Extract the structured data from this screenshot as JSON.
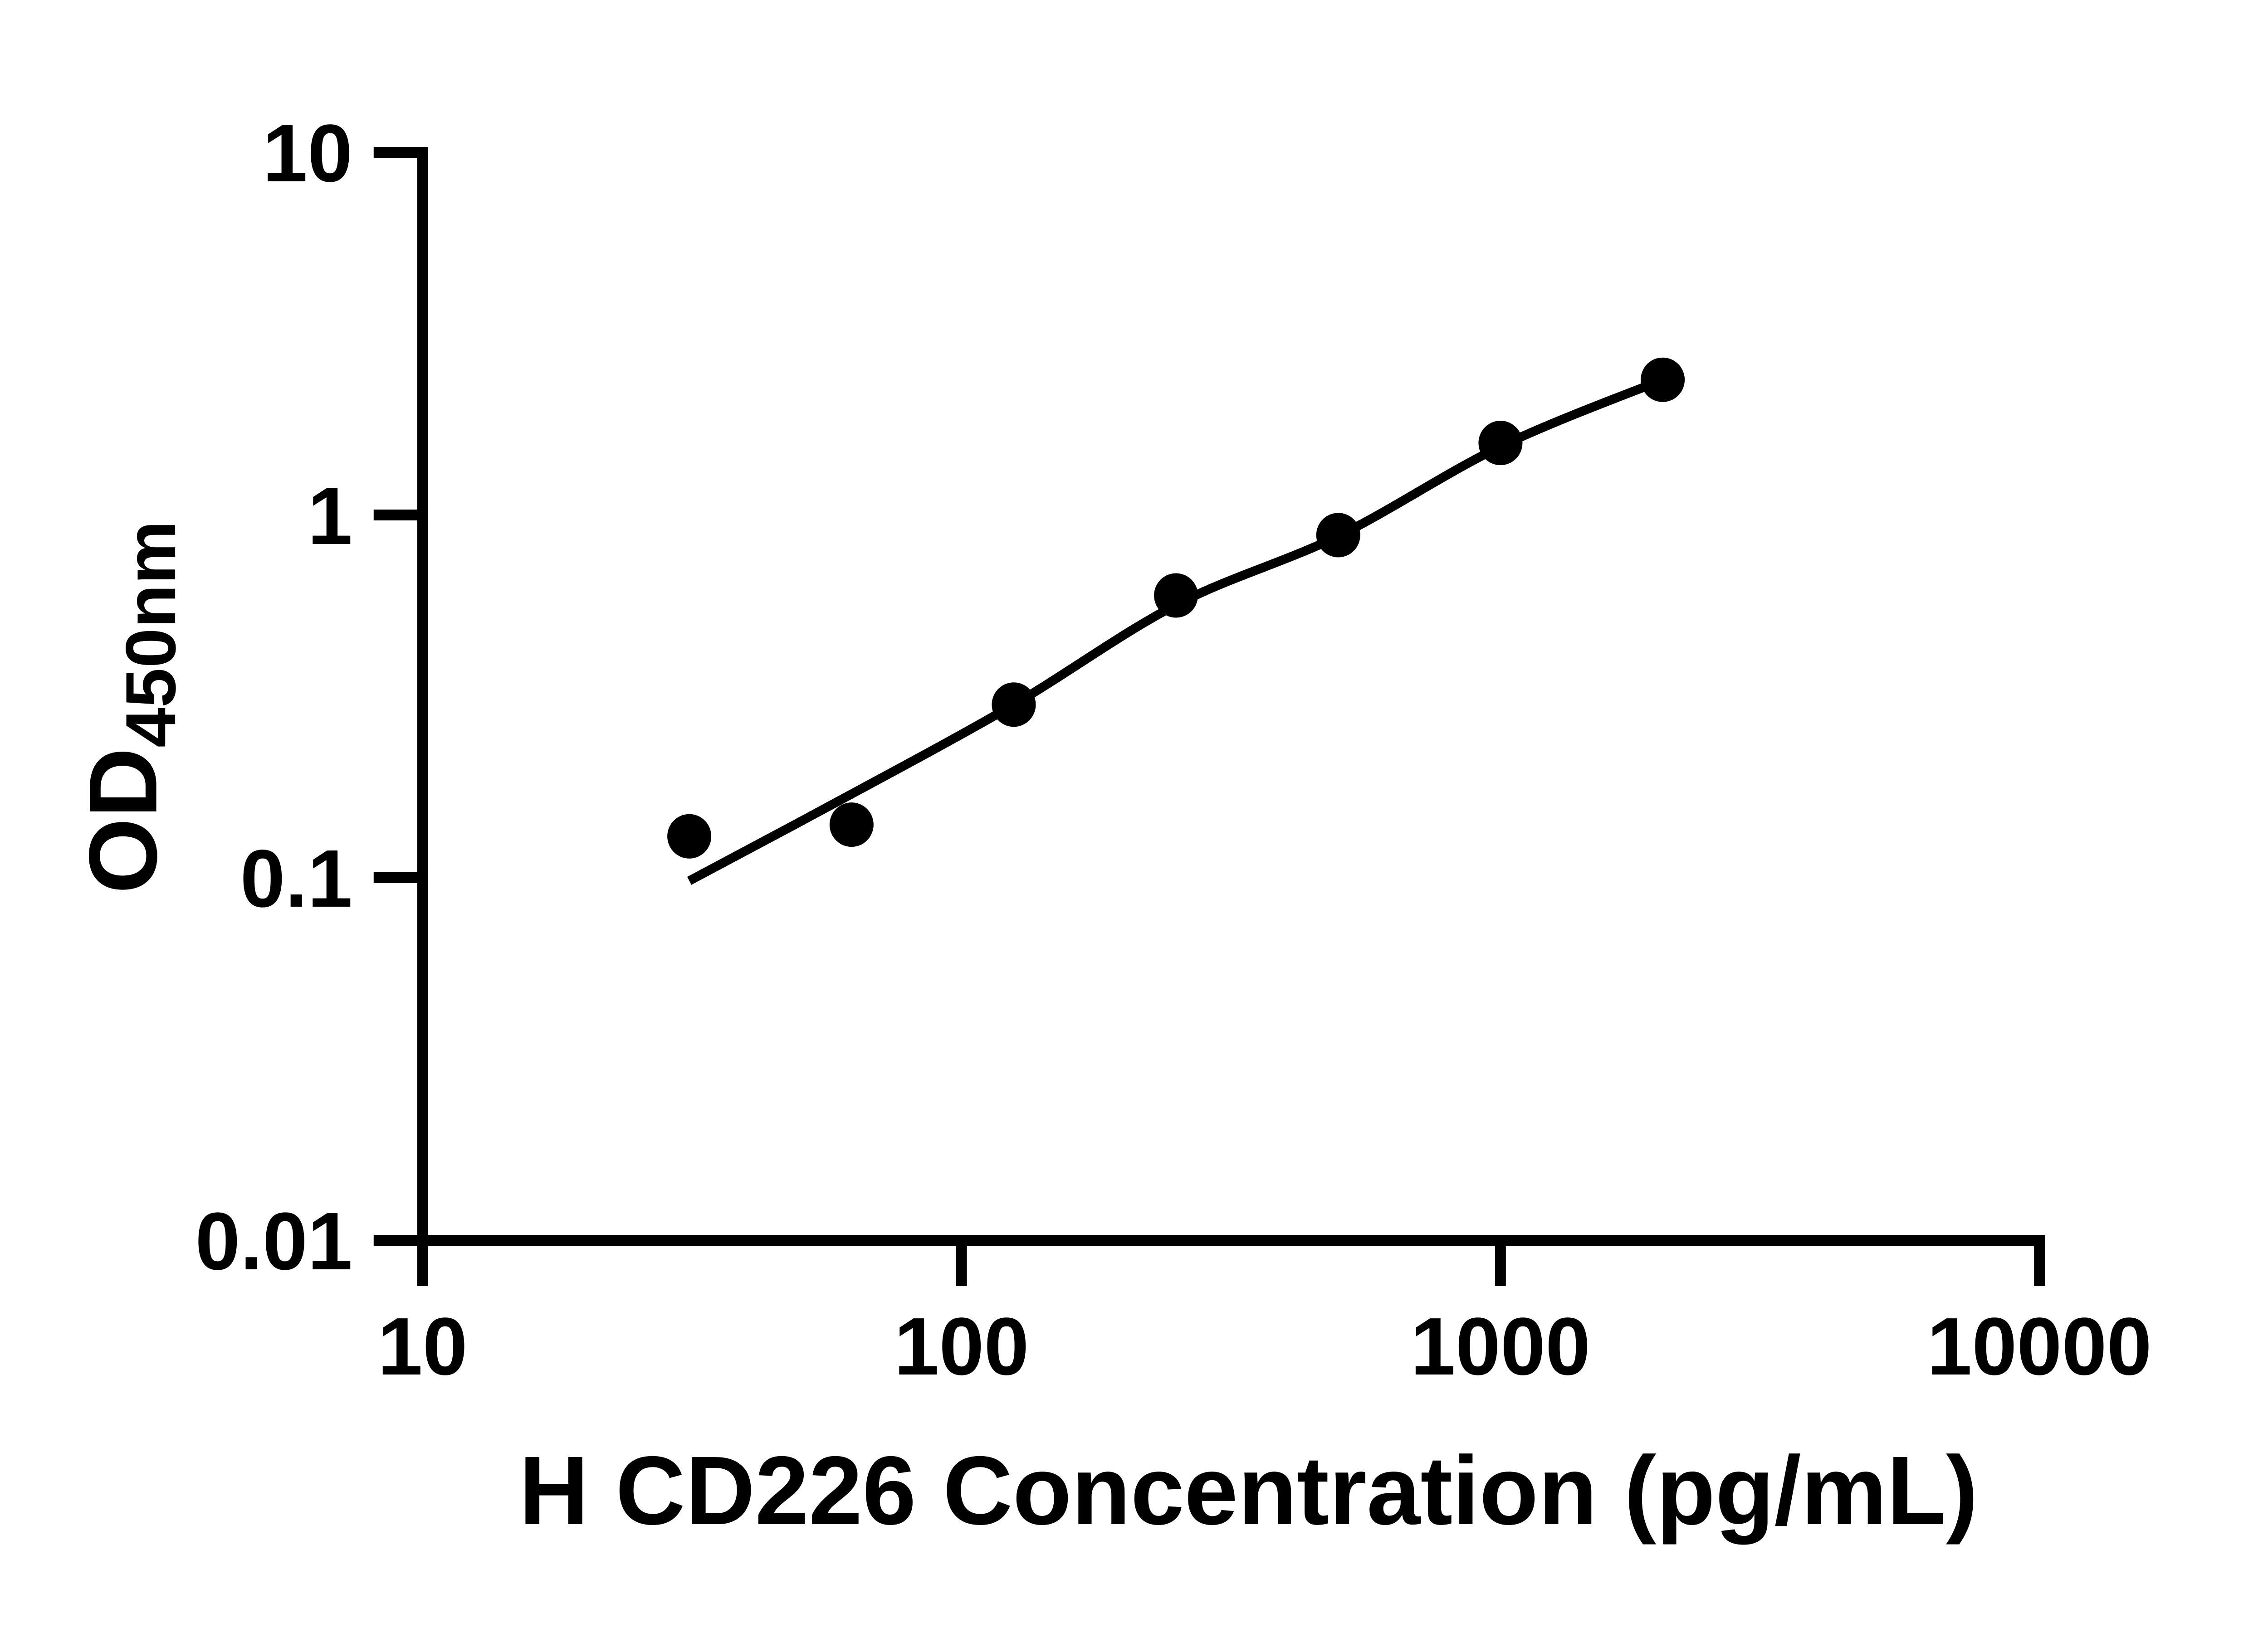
{
  "page": {
    "background": "#ffffff",
    "ink_color": "#000000"
  },
  "chart_data": {
    "type": "scatter",
    "title": "",
    "xlabel": "H CD226 Concentration (pg/mL)",
    "ylabel_main": "OD",
    "ylabel_sub": "450nm",
    "x_scale": "log10",
    "y_scale": "log10",
    "xlim": [
      10,
      10000
    ],
    "ylim": [
      0.01,
      10
    ],
    "x_ticks": [
      10,
      100,
      1000,
      10000
    ],
    "x_tick_labels": [
      "10",
      "100",
      "1000",
      "10000"
    ],
    "y_ticks": [
      10,
      1,
      0.1,
      0.01
    ],
    "y_tick_labels": [
      "10",
      "1",
      "0.1",
      "0.01"
    ],
    "grid": false,
    "legend": "none",
    "marker_color": "#000000",
    "line_color": "#000000",
    "series": [
      {
        "name": "standard-points",
        "type": "scatter",
        "marker": "filled-circle",
        "x": [
          31.25,
          62.5,
          125,
          250,
          500,
          1000,
          2000
        ],
        "y": [
          0.13,
          0.14,
          0.3,
          0.6,
          0.88,
          1.58,
          2.36
        ]
      },
      {
        "name": "fit-line",
        "type": "line",
        "x": [
          31.25,
          62.5,
          125,
          250,
          500,
          1000,
          2000
        ],
        "y": [
          0.098,
          0.17,
          0.3,
          0.565,
          0.875,
          1.545,
          2.36
        ]
      }
    ]
  }
}
